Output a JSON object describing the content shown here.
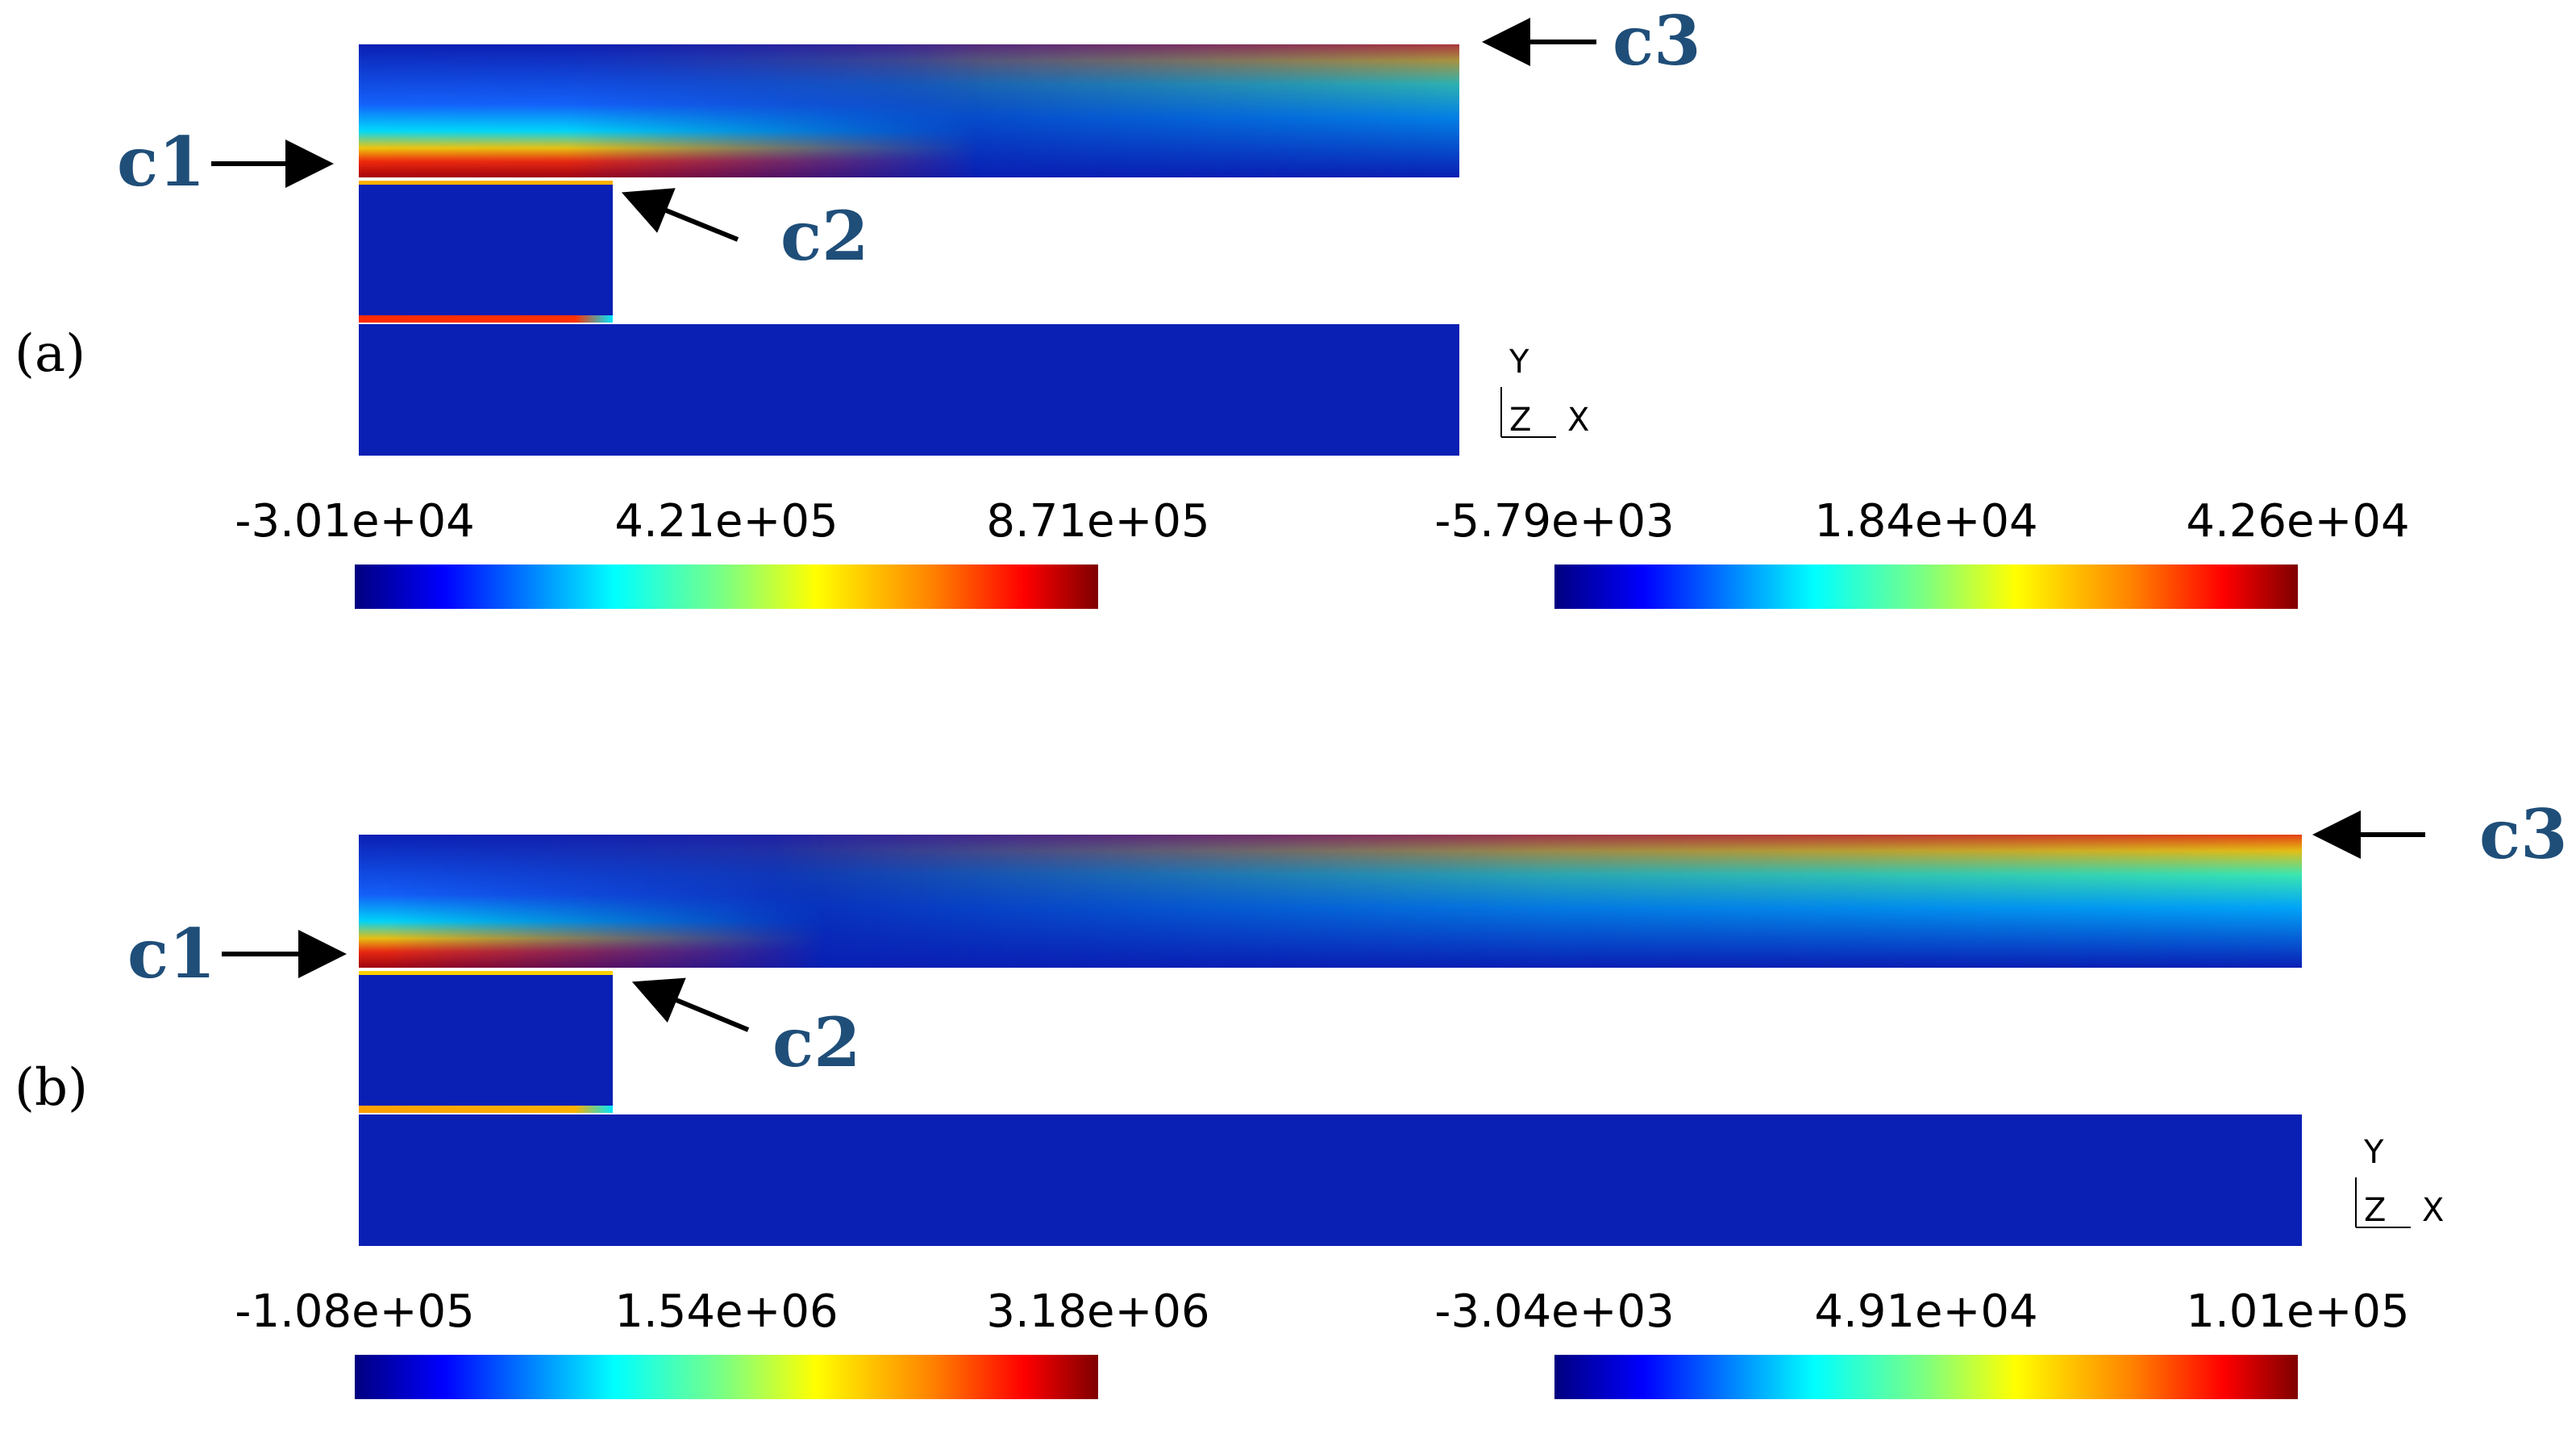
{
  "colormap": {
    "stops": [
      "#00007f",
      "#0000ff",
      "#007fff",
      "#00ffff",
      "#7fff7f",
      "#ffff00",
      "#ff7f00",
      "#ff0000",
      "#7f0000"
    ],
    "background_blue": "#0a1fb4",
    "callout_color": "#1f4e79"
  },
  "panels": [
    {
      "id": "a",
      "label": "(a)",
      "callouts": {
        "c1": "c1",
        "c2": "c2",
        "c3": "c3"
      },
      "axes": {
        "y": "Y",
        "z": "Z",
        "x": "X"
      },
      "colorbar_left": {
        "ticks": [
          "-3.01e+04",
          "4.21e+05",
          "8.71e+05"
        ]
      },
      "colorbar_right": {
        "ticks": [
          "-5.79e+03",
          "1.84e+04",
          "4.26e+04"
        ]
      }
    },
    {
      "id": "b",
      "label": "(b)",
      "callouts": {
        "c1": "c1",
        "c2": "c2",
        "c3": "c3"
      },
      "axes": {
        "y": "Y",
        "z": "Z",
        "x": "X"
      },
      "colorbar_left": {
        "ticks": [
          "-1.08e+05",
          "1.54e+06",
          "3.18e+06"
        ]
      },
      "colorbar_right": {
        "ticks": [
          "-3.04e+03",
          "4.91e+04",
          "1.01e+05"
        ]
      }
    }
  ]
}
